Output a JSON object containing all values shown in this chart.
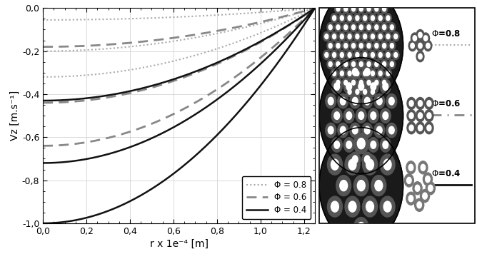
{
  "xlabel": "r x 1e⁻⁴ [m]",
  "ylabel": "Vz [m.s⁻¹]",
  "xlim": [
    0,
    1.25
  ],
  "ylim": [
    -1.0,
    0.0
  ],
  "xticks": [
    0.0,
    0.2,
    0.4,
    0.6,
    0.8,
    1.0,
    1.2
  ],
  "xtick_labels": [
    "0,0",
    "0,2",
    "0,4",
    "0,6",
    "0,8",
    "1,0",
    "1,2"
  ],
  "yticks": [
    0.0,
    -0.2,
    -0.4,
    -0.6,
    -0.8,
    -1.0
  ],
  "ytick_labels": [
    "0,0",
    "-0,2",
    "-0,4",
    "-0,6",
    "-0,8",
    "-1,0"
  ],
  "R": 0.000125,
  "curves": [
    {
      "phi": 0.8,
      "style": "dotted",
      "color": "#aaaaaa",
      "lw": 1.5,
      "vz_at_0": [
        -0.055,
        -0.2,
        -0.32
      ]
    },
    {
      "phi": 0.6,
      "style": "dashed",
      "color": "#888888",
      "lw": 2.0,
      "vz_at_0": [
        -0.18,
        -0.44,
        -0.64
      ]
    },
    {
      "phi": 0.4,
      "style": "solid",
      "color": "#111111",
      "lw": 1.8,
      "vz_at_0": [
        -0.43,
        -0.72,
        -1.0
      ]
    }
  ],
  "legend_phi08_label": "Φ = 0.8",
  "legend_phi06_label": "Φ = 0.6",
  "legend_phi04_label": "Φ = 0.4",
  "bg_color": "#ffffff",
  "grid_color": "#cccccc"
}
